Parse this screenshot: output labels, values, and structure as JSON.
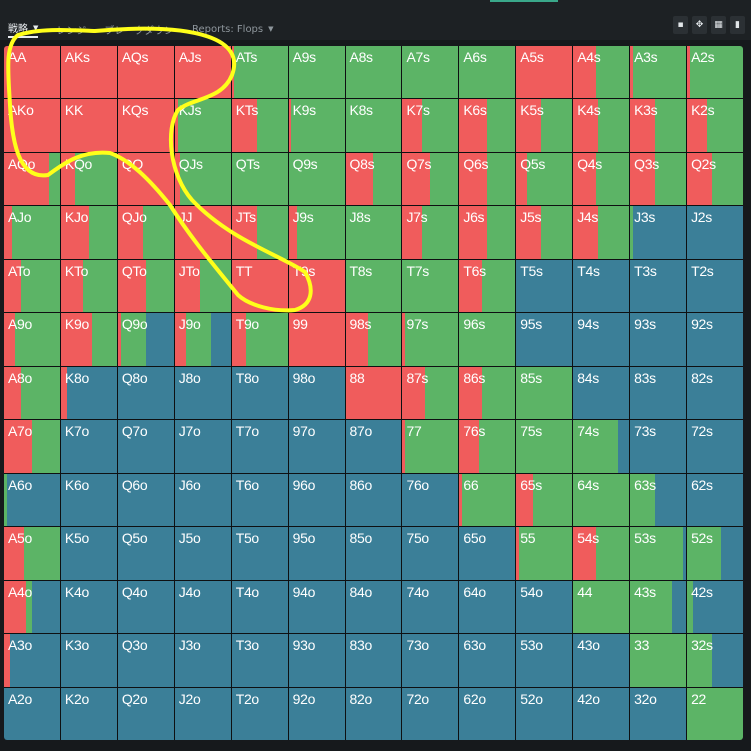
{
  "colors": {
    "raise": "#f05c5c",
    "call": "#5cb466",
    "fold": "#3b7f98",
    "annotation": "#ffff1a"
  },
  "tabs": [
    {
      "label": "戦略",
      "dropdown": true,
      "active": true
    },
    {
      "label": "レンジ",
      "dropdown": false,
      "active": false
    },
    {
      "label": "ブレークダウン",
      "dropdown": false,
      "active": false
    },
    {
      "label": "Reports: Flops",
      "dropdown": true,
      "active": false
    }
  ],
  "toolbar_icons": [
    "save-icon",
    "move-icon",
    "grid-view-icon",
    "document-icon"
  ],
  "matrix": {
    "rows": [
      [
        "AA",
        "AKs",
        "AQs",
        "AJs",
        "ATs",
        "A9s",
        "A8s",
        "A7s",
        "A6s",
        "A5s",
        "A4s",
        "A3s",
        "A2s"
      ],
      [
        "AKo",
        "KK",
        "KQs",
        "KJs",
        "KTs",
        "K9s",
        "K8s",
        "K7s",
        "K6s",
        "K5s",
        "K4s",
        "K3s",
        "K2s"
      ],
      [
        "AQo",
        "KQo",
        "QQ",
        "QJs",
        "QTs",
        "Q9s",
        "Q8s",
        "Q7s",
        "Q6s",
        "Q5s",
        "Q4s",
        "Q3s",
        "Q2s"
      ],
      [
        "AJo",
        "KJo",
        "QJo",
        "JJ",
        "JTs",
        "J9s",
        "J8s",
        "J7s",
        "J6s",
        "J5s",
        "J4s",
        "J3s",
        "J2s"
      ],
      [
        "ATo",
        "KTo",
        "QTo",
        "JTo",
        "TT",
        "T9s",
        "T8s",
        "T7s",
        "T6s",
        "T5s",
        "T4s",
        "T3s",
        "T2s"
      ],
      [
        "A9o",
        "K9o",
        "Q9o",
        "J9o",
        "T9o",
        "99",
        "98s",
        "97s",
        "96s",
        "95s",
        "94s",
        "93s",
        "92s"
      ],
      [
        "A8o",
        "K8o",
        "Q8o",
        "J8o",
        "T8o",
        "98o",
        "88",
        "87s",
        "86s",
        "85s",
        "84s",
        "83s",
        "82s"
      ],
      [
        "A7o",
        "K7o",
        "Q7o",
        "J7o",
        "T7o",
        "97o",
        "87o",
        "77",
        "76s",
        "75s",
        "74s",
        "73s",
        "72s"
      ],
      [
        "A6o",
        "K6o",
        "Q6o",
        "J6o",
        "T6o",
        "96o",
        "86o",
        "76o",
        "66",
        "65s",
        "64s",
        "63s",
        "62s"
      ],
      [
        "A5o",
        "K5o",
        "Q5o",
        "J5o",
        "T5o",
        "95o",
        "85o",
        "75o",
        "65o",
        "55",
        "54s",
        "53s",
        "52s"
      ],
      [
        "A4o",
        "K4o",
        "Q4o",
        "J4o",
        "T4o",
        "94o",
        "84o",
        "74o",
        "64o",
        "54o",
        "44",
        "43s",
        "42s"
      ],
      [
        "A3o",
        "K3o",
        "Q3o",
        "J3o",
        "T3o",
        "93o",
        "83o",
        "73o",
        "63o",
        "53o",
        "43o",
        "33",
        "32s"
      ],
      [
        "A2o",
        "K2o",
        "Q2o",
        "J2o",
        "T2o",
        "92o",
        "82o",
        "72o",
        "62o",
        "52o",
        "42o",
        "32o",
        "22"
      ]
    ],
    "frequencies": [
      [
        [
          1,
          0,
          0
        ],
        [
          1,
          0,
          0
        ],
        [
          1,
          0,
          0
        ],
        [
          1,
          0,
          0
        ],
        [
          0.05,
          0.95,
          0
        ],
        [
          0,
          1,
          0
        ],
        [
          0,
          1,
          0
        ],
        [
          0,
          1,
          0
        ],
        [
          0,
          1,
          0
        ],
        [
          1,
          0,
          0
        ],
        [
          0.4,
          0.6,
          0
        ],
        [
          0.05,
          0.95,
          0
        ],
        [
          0.05,
          0.95,
          0
        ]
      ],
      [
        [
          1,
          0,
          0
        ],
        [
          1,
          0,
          0
        ],
        [
          1,
          0,
          0
        ],
        [
          0.05,
          0.95,
          0
        ],
        [
          0.45,
          0.55,
          0
        ],
        [
          0.05,
          0.95,
          0
        ],
        [
          0,
          1,
          0
        ],
        [
          0.35,
          0.65,
          0
        ],
        [
          0.5,
          0.5,
          0
        ],
        [
          0.45,
          0.55,
          0
        ],
        [
          0.45,
          0.55,
          0
        ],
        [
          0.45,
          0.55,
          0
        ],
        [
          0.35,
          0.65,
          0
        ]
      ],
      [
        [
          0.8,
          0.2,
          0
        ],
        [
          0.25,
          0.75,
          0
        ],
        [
          1,
          0,
          0
        ],
        [
          0.1,
          0.9,
          0
        ],
        [
          0,
          1,
          0
        ],
        [
          0,
          1,
          0
        ],
        [
          0.5,
          0.5,
          0
        ],
        [
          0.5,
          0.5,
          0
        ],
        [
          0.5,
          0.5,
          0
        ],
        [
          0.2,
          0.8,
          0
        ],
        [
          0.4,
          0.6,
          0
        ],
        [
          0.45,
          0.55,
          0
        ],
        [
          0.45,
          0.55,
          0
        ]
      ],
      [
        [
          0.15,
          0.85,
          0
        ],
        [
          0.5,
          0.5,
          0
        ],
        [
          0.45,
          0.55,
          0
        ],
        [
          1,
          0,
          0
        ],
        [
          0.45,
          0.55,
          0
        ],
        [
          0.15,
          0.85,
          0
        ],
        [
          0,
          1,
          0
        ],
        [
          0.35,
          0.65,
          0
        ],
        [
          0.5,
          0.5,
          0
        ],
        [
          0.45,
          0.55,
          0
        ],
        [
          0.45,
          0.55,
          0
        ],
        [
          0,
          0.05,
          0.95
        ],
        [
          0,
          0,
          1
        ]
      ],
      [
        [
          0.3,
          0.7,
          0
        ],
        [
          0.4,
          0.6,
          0
        ],
        [
          0.5,
          0.5,
          0
        ],
        [
          0.45,
          0.55,
          0
        ],
        [
          1,
          0,
          0
        ],
        [
          1,
          0,
          0
        ],
        [
          0,
          1,
          0
        ],
        [
          0,
          1,
          0
        ],
        [
          0.4,
          0.6,
          0
        ],
        [
          0,
          0,
          1
        ],
        [
          0,
          0,
          1
        ],
        [
          0,
          0,
          1
        ],
        [
          0,
          0,
          1
        ]
      ],
      [
        [
          0.2,
          0.8,
          0
        ],
        [
          0.55,
          0.45,
          0
        ],
        [
          0.05,
          0.45,
          0.5
        ],
        [
          0.2,
          0.45,
          0.35
        ],
        [
          0.25,
          0.75,
          0
        ],
        [
          1,
          0,
          0
        ],
        [
          0.4,
          0.6,
          0
        ],
        [
          0.05,
          0.95,
          0
        ],
        [
          0,
          1,
          0
        ],
        [
          0,
          0,
          1
        ],
        [
          0,
          0,
          1
        ],
        [
          0,
          0,
          1
        ],
        [
          0,
          0,
          1
        ]
      ],
      [
        [
          0.3,
          0.7,
          0
        ],
        [
          0.1,
          0,
          0.9
        ],
        [
          0,
          0,
          1
        ],
        [
          0,
          0,
          1
        ],
        [
          0,
          0,
          1
        ],
        [
          0,
          0,
          1
        ],
        [
          1,
          0,
          0
        ],
        [
          0.4,
          0.6,
          0
        ],
        [
          0.4,
          0.6,
          0
        ],
        [
          0,
          1,
          0
        ],
        [
          0,
          0,
          1
        ],
        [
          0,
          0,
          1
        ],
        [
          0,
          0,
          1
        ]
      ],
      [
        [
          0.5,
          0.5,
          0
        ],
        [
          0,
          0,
          1
        ],
        [
          0,
          0,
          1
        ],
        [
          0,
          0,
          1
        ],
        [
          0,
          0,
          1
        ],
        [
          0,
          0,
          1
        ],
        [
          0,
          0,
          1
        ],
        [
          0.05,
          0.95,
          0
        ],
        [
          0.35,
          0.65,
          0
        ],
        [
          0,
          1,
          0
        ],
        [
          0,
          0.8,
          0.2
        ],
        [
          0,
          0,
          1
        ],
        [
          0,
          0,
          1
        ]
      ],
      [
        [
          0,
          0.05,
          0.95
        ],
        [
          0,
          0,
          1
        ],
        [
          0,
          0,
          1
        ],
        [
          0,
          0,
          1
        ],
        [
          0,
          0,
          1
        ],
        [
          0,
          0,
          1
        ],
        [
          0,
          0,
          1
        ],
        [
          0,
          0,
          1
        ],
        [
          0.05,
          0.95,
          0
        ],
        [
          0.3,
          0.7,
          0
        ],
        [
          0,
          1,
          0
        ],
        [
          0,
          0.45,
          0.55
        ],
        [
          0,
          0,
          1
        ]
      ],
      [
        [
          0.35,
          0.65,
          0
        ],
        [
          0,
          0,
          1
        ],
        [
          0,
          0,
          1
        ],
        [
          0,
          0,
          1
        ],
        [
          0,
          0,
          1
        ],
        [
          0,
          0,
          1
        ],
        [
          0,
          0,
          1
        ],
        [
          0,
          0,
          1
        ],
        [
          0,
          0,
          1
        ],
        [
          0.05,
          0.95,
          0
        ],
        [
          0.4,
          0.6,
          0
        ],
        [
          0,
          0.95,
          0.05
        ],
        [
          0,
          0.6,
          0.4
        ]
      ],
      [
        [
          0.4,
          0.1,
          0.5
        ],
        [
          0,
          0,
          1
        ],
        [
          0,
          0,
          1
        ],
        [
          0,
          0,
          1
        ],
        [
          0,
          0,
          1
        ],
        [
          0,
          0,
          1
        ],
        [
          0,
          0,
          1
        ],
        [
          0,
          0,
          1
        ],
        [
          0,
          0,
          1
        ],
        [
          0,
          0,
          1
        ],
        [
          0,
          1,
          0
        ],
        [
          0,
          0.75,
          0.25
        ],
        [
          0,
          0.1,
          0.9
        ]
      ],
      [
        [
          0.1,
          0,
          0.9
        ],
        [
          0,
          0,
          1
        ],
        [
          0,
          0,
          1
        ],
        [
          0,
          0,
          1
        ],
        [
          0,
          0,
          1
        ],
        [
          0,
          0,
          1
        ],
        [
          0,
          0,
          1
        ],
        [
          0,
          0,
          1
        ],
        [
          0,
          0,
          1
        ],
        [
          0,
          0,
          1
        ],
        [
          0,
          0,
          1
        ],
        [
          0,
          1,
          0
        ],
        [
          0,
          0.45,
          0.55
        ]
      ],
      [
        [
          0,
          0,
          1
        ],
        [
          0,
          0,
          1
        ],
        [
          0,
          0,
          1
        ],
        [
          0,
          0,
          1
        ],
        [
          0,
          0,
          1
        ],
        [
          0,
          0,
          1
        ],
        [
          0,
          0,
          1
        ],
        [
          0,
          0,
          1
        ],
        [
          0,
          0,
          1
        ],
        [
          0,
          0,
          1
        ],
        [
          0,
          0,
          1
        ],
        [
          0,
          0,
          1
        ],
        [
          0,
          1,
          0
        ]
      ]
    ]
  }
}
